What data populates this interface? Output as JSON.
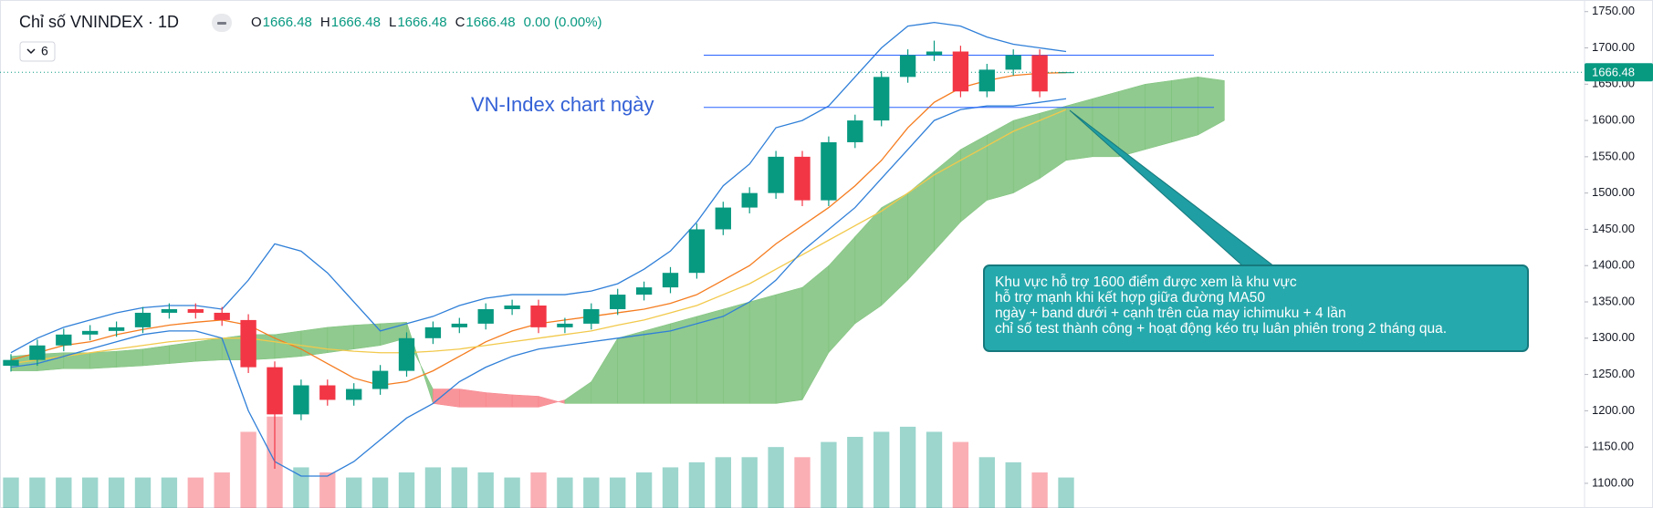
{
  "chart_data": {
    "type": "candlestick",
    "title": "Chỉ số VNINDEX · 1D",
    "indicator_count": "6",
    "ohlc_keys": [
      "O",
      "H",
      "L",
      "C"
    ],
    "change": "0.00 (0.00%)",
    "annotation": "VN-Index chart ngày",
    "callout": [
      "Khu vực hỗ trợ 1600 điểm được xem là khu vực",
      "hỗ trợ mạnh khi kết hợp giữa đường MA50",
      "ngày + band dưới + cạnh trên của may ichimuku + 4 lần",
      "chỉ số test thành công + hoạt động kéo trụ luân phiên trong 2 tháng qua."
    ],
    "up_color": "#089981",
    "down_color": "#f23645",
    "ylim": [
      1066,
      1766
    ],
    "yticks": [
      {
        "value": 1750,
        "label": "1750.00"
      },
      {
        "value": 1700,
        "label": "1700.00"
      },
      {
        "value": 1650,
        "label": "1650.00"
      },
      {
        "value": 1600,
        "label": "1600.00"
      },
      {
        "value": 1550,
        "label": "1550.00"
      },
      {
        "value": 1500,
        "label": "1500.00"
      },
      {
        "value": 1450,
        "label": "1450.00"
      },
      {
        "value": 1400,
        "label": "1400.00"
      },
      {
        "value": 1350,
        "label": "1350.00"
      },
      {
        "value": 1300,
        "label": "1300.00"
      },
      {
        "value": 1250,
        "label": "1250.00"
      },
      {
        "value": 1200,
        "label": "1200.00"
      },
      {
        "value": 1150,
        "label": "1150.00"
      },
      {
        "value": 1100,
        "label": "1100.00"
      }
    ],
    "y2lim": [
      0,
      100
    ],
    "grid": false,
    "levels": [
      1690,
      1618
    ],
    "candles": {
      "open": [
        1262,
        1270,
        1290,
        1305,
        1310,
        1315,
        1335,
        1340,
        1335,
        1325,
        1260,
        1195,
        1235,
        1215,
        1230,
        1255,
        1300,
        1315,
        1320,
        1340,
        1345,
        1315,
        1320,
        1340,
        1360,
        1370,
        1390,
        1450,
        1480,
        1500,
        1550,
        1490,
        1570,
        1600,
        1660,
        1690,
        1695,
        1640,
        1670,
        1690,
        1666.48
      ],
      "high": [
        1278,
        1298,
        1313,
        1318,
        1323,
        1343,
        1348,
        1348,
        1343,
        1333,
        1268,
        1243,
        1243,
        1238,
        1263,
        1308,
        1323,
        1328,
        1348,
        1353,
        1353,
        1328,
        1348,
        1368,
        1378,
        1398,
        1458,
        1488,
        1508,
        1558,
        1558,
        1578,
        1608,
        1668,
        1698,
        1710,
        1703,
        1678,
        1698,
        1698,
        1666.48
      ],
      "low": [
        1254,
        1262,
        1282,
        1297,
        1302,
        1307,
        1327,
        1327,
        1317,
        1252,
        1120,
        1187,
        1207,
        1207,
        1222,
        1247,
        1292,
        1307,
        1312,
        1332,
        1307,
        1307,
        1312,
        1332,
        1352,
        1362,
        1382,
        1442,
        1472,
        1492,
        1482,
        1482,
        1562,
        1592,
        1652,
        1682,
        1632,
        1632,
        1662,
        1632,
        1666.48
      ],
      "close": [
        1270,
        1290,
        1305,
        1310,
        1315,
        1335,
        1340,
        1335,
        1325,
        1260,
        1195,
        1235,
        1215,
        1230,
        1255,
        1300,
        1315,
        1320,
        1340,
        1345,
        1315,
        1320,
        1340,
        1360,
        1370,
        1390,
        1450,
        1480,
        1500,
        1550,
        1490,
        1570,
        1600,
        1660,
        1690,
        1695,
        1640,
        1670,
        1690,
        1640,
        1666.48
      ],
      "volume": [
        6,
        6,
        6,
        6,
        6,
        6,
        6,
        6,
        7,
        15,
        18,
        8,
        7,
        6,
        6,
        7,
        8,
        8,
        7,
        6,
        7,
        6,
        6,
        6,
        7,
        8,
        9,
        10,
        10,
        12,
        10,
        13,
        14,
        15,
        16,
        15,
        13,
        10,
        9,
        7,
        6
      ]
    },
    "series": [
      {
        "color": "#f57c1f",
        "values": [
          1270,
          1280,
          1290,
          1295,
          1305,
          1312,
          1318,
          1322,
          1325,
          1318,
          1300,
          1285,
          1265,
          1245,
          1235,
          1240,
          1255,
          1275,
          1295,
          1310,
          1320,
          1325,
          1330,
          1335,
          1340,
          1348,
          1360,
          1380,
          1400,
          1430,
          1455,
          1480,
          1510,
          1545,
          1590,
          1625,
          1645,
          1655,
          1662,
          1665,
          1666
        ]
      },
      {
        "color": "#f2c94c",
        "values": [
          1265,
          1270,
          1275,
          1280,
          1285,
          1290,
          1295,
          1298,
          1300,
          1300,
          1295,
          1290,
          1285,
          1282,
          1280,
          1280,
          1282,
          1285,
          1290,
          1295,
          1300,
          1305,
          1310,
          1318,
          1325,
          1335,
          1345,
          1360,
          1375,
          1395,
          1415,
          1435,
          1455,
          1475,
          1500,
          1525,
          1545,
          1565,
          1585,
          1600,
          1615
        ]
      },
      {
        "color": "#2f7fd8",
        "values": [
          1280,
          1300,
          1315,
          1325,
          1335,
          1342,
          1345,
          1345,
          1340,
          1380,
          1430,
          1420,
          1390,
          1350,
          1310,
          1320,
          1330,
          1345,
          1355,
          1360,
          1360,
          1360,
          1365,
          1375,
          1395,
          1420,
          1460,
          1510,
          1540,
          1590,
          1600,
          1620,
          1660,
          1700,
          1730,
          1735,
          1730,
          1715,
          1705,
          1700,
          1695
        ]
      },
      {
        "color": "#2f7fd8",
        "values": [
          1260,
          1265,
          1275,
          1285,
          1295,
          1305,
          1310,
          1310,
          1300,
          1200,
          1130,
          1110,
          1110,
          1130,
          1160,
          1190,
          1210,
          1240,
          1260,
          1275,
          1285,
          1290,
          1295,
          1300,
          1305,
          1310,
          1320,
          1330,
          1350,
          1380,
          1420,
          1450,
          1480,
          1520,
          1560,
          1600,
          1615,
          1620,
          1620,
          1625,
          1630
        ]
      }
    ],
    "cloud": {
      "up_color": "#7cc17a",
      "down_color": "#f7828a",
      "span_a": [
        1275,
        1278,
        1280,
        1280,
        1282,
        1285,
        1290,
        1295,
        1300,
        1305,
        1305,
        1310,
        1315,
        1318,
        1320,
        1322,
        1210,
        1205,
        1205,
        1205,
        1205,
        1215,
        1240,
        1300,
        1310,
        1320,
        1330,
        1340,
        1350,
        1360,
        1370,
        1400,
        1440,
        1480,
        1500,
        1530,
        1560,
        1580,
        1600,
        1610,
        1620,
        1630,
        1640,
        1650,
        1655,
        1660,
        1655
      ],
      "span_b": [
        1255,
        1255,
        1258,
        1258,
        1260,
        1262,
        1265,
        1268,
        1270,
        1270,
        1272,
        1275,
        1280,
        1285,
        1290,
        1300,
        1230,
        1230,
        1225,
        1222,
        1220,
        1210,
        1210,
        1210,
        1210,
        1210,
        1210,
        1210,
        1210,
        1210,
        1215,
        1280,
        1320,
        1345,
        1380,
        1420,
        1460,
        1490,
        1500,
        1520,
        1545,
        1550,
        1550,
        1560,
        1570,
        1580,
        1600
      ]
    }
  }
}
